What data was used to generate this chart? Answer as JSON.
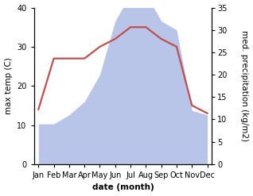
{
  "months": [
    "Jan",
    "Feb",
    "Mar",
    "Apr",
    "May",
    "Jun",
    "Jul",
    "Aug",
    "Sep",
    "Oct",
    "Nov",
    "Dec"
  ],
  "temperature": [
    14,
    27,
    27,
    27,
    30,
    32,
    35,
    35,
    32,
    30,
    15,
    13
  ],
  "precipitation": [
    9,
    9,
    11,
    14,
    20,
    32,
    38,
    38,
    32,
    30,
    12,
    11
  ],
  "temp_color": "#c0504d",
  "precip_fill_color": "#b8c4e8",
  "left_ylim": [
    0,
    40
  ],
  "right_ylim": [
    0,
    35
  ],
  "left_yticks": [
    0,
    10,
    20,
    30,
    40
  ],
  "right_yticks": [
    0,
    5,
    10,
    15,
    20,
    25,
    30,
    35
  ],
  "ylabel_left": "max temp (C)",
  "ylabel_right": "med. precipitation (kg/m2)",
  "xlabel": "date (month)",
  "label_fontsize": 7.5,
  "tick_fontsize": 7,
  "temp_linewidth": 1.6,
  "background_color": "#ffffff"
}
